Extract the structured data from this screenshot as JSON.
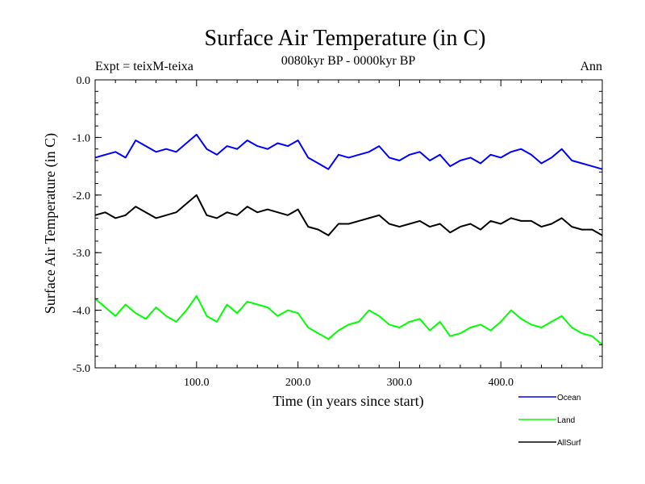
{
  "chart_data": {
    "type": "line",
    "title": "Surface Air Temperature (in C)",
    "subtitle": "0080kyr BP - 0000kyr BP",
    "top_left_label": "Expt = teixM-teixa",
    "top_right_label": "Ann",
    "xlabel": "Time (in years since start)",
    "ylabel": "Surface Air Temperature (in C)",
    "xlim": [
      0,
      500
    ],
    "ylim": [
      -5.0,
      0.0
    ],
    "x_ticks": [
      100,
      200,
      300,
      400
    ],
    "x_tick_labels": [
      "100.0",
      "200.0",
      "300.0",
      "400.0"
    ],
    "y_ticks": [
      0,
      -1,
      -2,
      -3,
      -4,
      -5
    ],
    "y_tick_labels": [
      "0.0",
      "-1.0",
      "-2.0",
      "-3.0",
      "-4.0",
      "-5.0"
    ],
    "grid": false,
    "legend_position": "bottom-right, outside plot",
    "x": [
      0,
      10,
      20,
      30,
      40,
      50,
      60,
      70,
      80,
      90,
      100,
      110,
      120,
      130,
      140,
      150,
      160,
      170,
      180,
      190,
      200,
      210,
      220,
      230,
      240,
      250,
      260,
      270,
      280,
      290,
      300,
      310,
      320,
      330,
      340,
      350,
      360,
      370,
      380,
      390,
      400,
      410,
      420,
      430,
      440,
      450,
      460,
      470,
      480,
      490,
      500
    ],
    "series": [
      {
        "name": "Ocean",
        "color": "#0000ff",
        "values": [
          -1.35,
          -1.3,
          -1.25,
          -1.35,
          -1.05,
          -1.15,
          -1.25,
          -1.2,
          -1.25,
          -1.1,
          -0.95,
          -1.2,
          -1.3,
          -1.15,
          -1.2,
          -1.05,
          -1.15,
          -1.2,
          -1.1,
          -1.15,
          -1.05,
          -1.35,
          -1.45,
          -1.55,
          -1.3,
          -1.35,
          -1.3,
          -1.25,
          -1.15,
          -1.35,
          -1.4,
          -1.3,
          -1.25,
          -1.4,
          -1.3,
          -1.5,
          -1.4,
          -1.35,
          -1.45,
          -1.3,
          -1.35,
          -1.25,
          -1.2,
          -1.3,
          -1.45,
          -1.35,
          -1.2,
          -1.4,
          -1.45,
          -1.5,
          -1.55
        ]
      },
      {
        "name": "Land",
        "color": "#00ff00",
        "values": [
          -3.8,
          -3.95,
          -4.1,
          -3.9,
          -4.05,
          -4.15,
          -3.95,
          -4.1,
          -4.2,
          -4.0,
          -3.75,
          -4.1,
          -4.2,
          -3.9,
          -4.05,
          -3.85,
          -3.9,
          -3.95,
          -4.1,
          -4.0,
          -4.05,
          -4.3,
          -4.4,
          -4.5,
          -4.35,
          -4.25,
          -4.2,
          -4.0,
          -4.1,
          -4.25,
          -4.3,
          -4.2,
          -4.15,
          -4.35,
          -4.2,
          -4.45,
          -4.4,
          -4.3,
          -4.25,
          -4.35,
          -4.2,
          -4.0,
          -4.15,
          -4.25,
          -4.3,
          -4.2,
          -4.1,
          -4.3,
          -4.4,
          -4.45,
          -4.6
        ]
      },
      {
        "name": "AllSurf",
        "color": "#000000",
        "values": [
          -2.35,
          -2.3,
          -2.4,
          -2.35,
          -2.2,
          -2.3,
          -2.4,
          -2.35,
          -2.3,
          -2.15,
          -2.0,
          -2.35,
          -2.4,
          -2.3,
          -2.35,
          -2.2,
          -2.3,
          -2.25,
          -2.3,
          -2.35,
          -2.25,
          -2.55,
          -2.6,
          -2.7,
          -2.5,
          -2.5,
          -2.45,
          -2.4,
          -2.35,
          -2.5,
          -2.55,
          -2.5,
          -2.45,
          -2.55,
          -2.5,
          -2.65,
          -2.55,
          -2.5,
          -2.6,
          -2.45,
          -2.5,
          -2.4,
          -2.45,
          -2.45,
          -2.55,
          -2.5,
          -2.4,
          -2.55,
          -2.6,
          -2.6,
          -2.7
        ]
      }
    ]
  }
}
